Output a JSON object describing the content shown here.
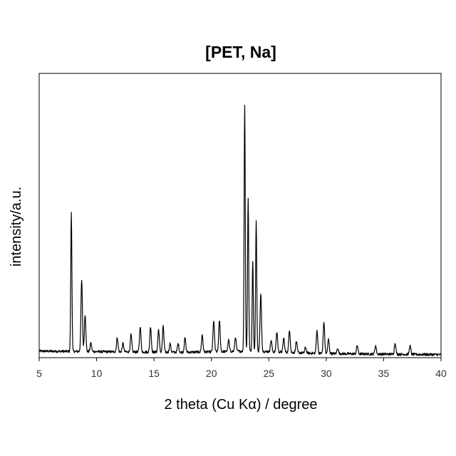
{
  "chart_data": {
    "type": "line",
    "title": "[PET, Na]",
    "xlabel": "2 theta (Cu Kα) / degree",
    "ylabel": "intensity/a.u.",
    "xlim": [
      5,
      40
    ],
    "ylim": [
      0,
      100
    ],
    "xticks": [
      "5",
      "10",
      "15",
      "20",
      "25",
      "30",
      "35",
      "40"
    ],
    "yticks_shown": false,
    "grid": false,
    "legend": "none",
    "line_color": "#000000",
    "series": [
      {
        "peaks": [
          {
            "x": 7.8,
            "y": 49
          },
          {
            "x": 8.7,
            "y": 25
          },
          {
            "x": 9.0,
            "y": 13
          },
          {
            "x": 9.5,
            "y": 3
          },
          {
            "x": 11.8,
            "y": 5
          },
          {
            "x": 12.3,
            "y": 3
          },
          {
            "x": 13.0,
            "y": 6
          },
          {
            "x": 13.8,
            "y": 9
          },
          {
            "x": 14.7,
            "y": 9
          },
          {
            "x": 15.4,
            "y": 8
          },
          {
            "x": 15.8,
            "y": 9
          },
          {
            "x": 16.4,
            "y": 3
          },
          {
            "x": 17.1,
            "y": 3
          },
          {
            "x": 17.7,
            "y": 5
          },
          {
            "x": 19.2,
            "y": 6
          },
          {
            "x": 20.2,
            "y": 11
          },
          {
            "x": 20.7,
            "y": 11
          },
          {
            "x": 21.5,
            "y": 4
          },
          {
            "x": 22.1,
            "y": 5
          },
          {
            "x": 22.9,
            "y": 87
          },
          {
            "x": 23.2,
            "y": 54
          },
          {
            "x": 23.6,
            "y": 32
          },
          {
            "x": 23.9,
            "y": 46
          },
          {
            "x": 24.3,
            "y": 20
          },
          {
            "x": 25.2,
            "y": 4
          },
          {
            "x": 25.7,
            "y": 7
          },
          {
            "x": 26.3,
            "y": 5
          },
          {
            "x": 26.8,
            "y": 8
          },
          {
            "x": 27.4,
            "y": 4
          },
          {
            "x": 28.2,
            "y": 2
          },
          {
            "x": 29.2,
            "y": 8
          },
          {
            "x": 29.8,
            "y": 11
          },
          {
            "x": 30.2,
            "y": 5
          },
          {
            "x": 31.0,
            "y": 2
          },
          {
            "x": 32.7,
            "y": 3
          },
          {
            "x": 34.3,
            "y": 3
          },
          {
            "x": 36.0,
            "y": 4
          },
          {
            "x": 37.3,
            "y": 3
          }
        ]
      }
    ]
  }
}
